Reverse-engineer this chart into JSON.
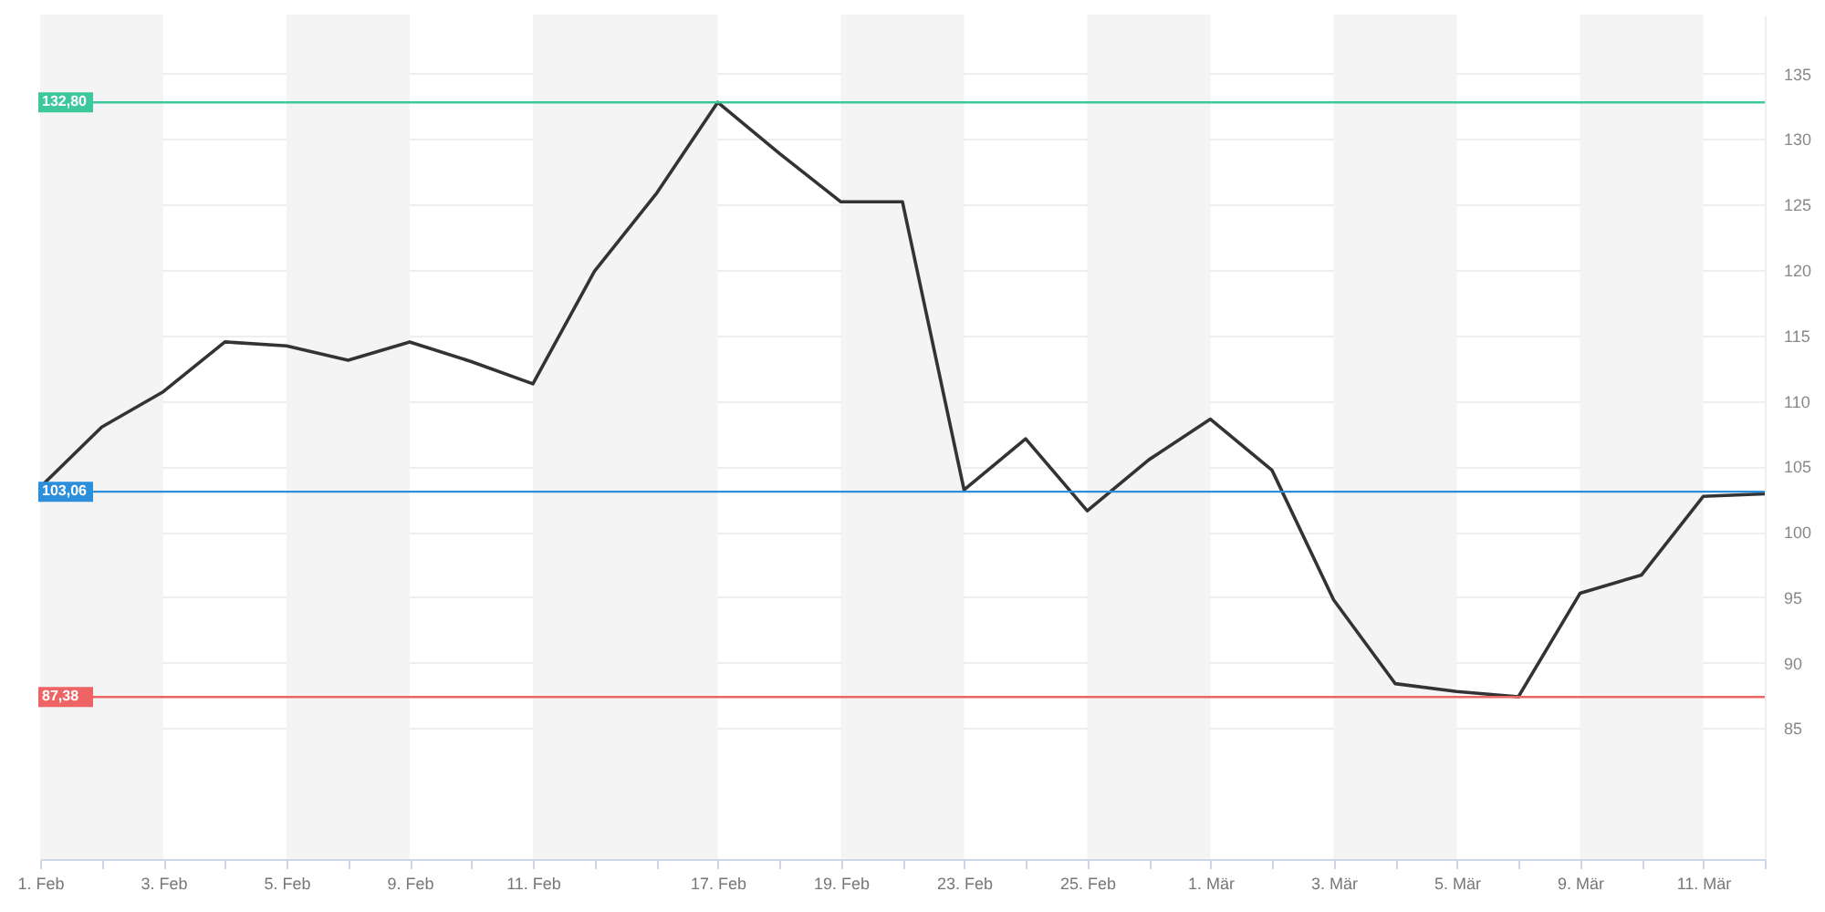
{
  "chart_data": {
    "type": "line",
    "categories": [
      "1. Feb",
      null,
      "3. Feb",
      null,
      "5. Feb",
      null,
      "9. Feb",
      null,
      "11. Feb",
      null,
      null,
      "17. Feb",
      null,
      "19. Feb",
      null,
      "23. Feb",
      null,
      "25. Feb",
      null,
      "1. Mär",
      null,
      "3. Mär",
      null,
      "5. Mär",
      null,
      "9. Mär",
      null,
      "11. Mär",
      null
    ],
    "series": [
      {
        "color": "#333333",
        "values": [
          103.4,
          108.0,
          110.7,
          114.5,
          114.2,
          113.1,
          114.5,
          113.0,
          111.3,
          119.9,
          125.8,
          132.8,
          128.9,
          125.2,
          125.2,
          103.2,
          107.1,
          101.6,
          105.5,
          108.6,
          104.7,
          94.8,
          88.4,
          87.8,
          87.4,
          95.3,
          96.7,
          102.7,
          102.9
        ]
      }
    ],
    "ylim": [
      75,
      139.5
    ],
    "yticks": [
      85,
      90,
      95,
      100,
      105,
      110,
      115,
      120,
      125,
      130,
      135
    ],
    "grid": "y",
    "marker": "none",
    "line_style": "solid",
    "ref_lines": [
      {
        "axis": "y",
        "value": 132.8,
        "label": "132,80",
        "color": "#3cc89c"
      },
      {
        "axis": "y",
        "value": 103.06,
        "label": "103,06",
        "color": "#2c8fdc"
      },
      {
        "axis": "y",
        "value": 87.38,
        "label": "87,38",
        "color": "#ee6464"
      }
    ],
    "bands": [
      {
        "axis": "x",
        "from": "1. Feb",
        "to": "3. Feb",
        "color": "#f4f4f4"
      },
      {
        "axis": "x",
        "from": "5. Feb",
        "to": "9. Feb",
        "color": "#f4f4f4"
      },
      {
        "axis": "x",
        "from": "11. Feb",
        "to": "17. Feb",
        "color": "#f4f4f4"
      },
      {
        "axis": "x",
        "from": "19. Feb",
        "to": "23. Feb",
        "color": "#f4f4f4"
      },
      {
        "axis": "x",
        "from": "25. Feb",
        "to": "1. Mär",
        "color": "#f4f4f4"
      },
      {
        "axis": "x",
        "from": "3. Mär",
        "to": "5. Mär",
        "color": "#f4f4f4"
      },
      {
        "axis": "x",
        "from": "9. Mär",
        "to": "11. Mär",
        "color": "#f4f4f4"
      }
    ]
  }
}
